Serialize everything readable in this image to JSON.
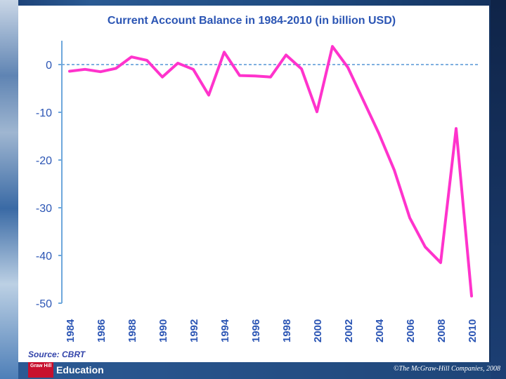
{
  "chart_data": {
    "type": "line",
    "title": "Current Account Balance in 1984-2010 (in billion USD)",
    "xlabel": "",
    "ylabel": "",
    "ylim": [
      -50,
      5
    ],
    "yticks": [
      0,
      -10,
      -20,
      -30,
      -40,
      -50
    ],
    "xticks": [
      1984,
      1986,
      1988,
      1990,
      1992,
      1994,
      1996,
      1998,
      2000,
      2002,
      2004,
      2006,
      2008,
      2010
    ],
    "series": [
      {
        "name": "Current Account Balance",
        "color": "#ff33cc",
        "x": [
          1984,
          1985,
          1986,
          1987,
          1988,
          1989,
          1990,
          1991,
          1992,
          1993,
          1994,
          1995,
          1996,
          1997,
          1998,
          1999,
          2000,
          2001,
          2002,
          2003,
          2004,
          2005,
          2006,
          2007,
          2008,
          2009,
          2010
        ],
        "values": [
          -1.4,
          -1.0,
          -1.5,
          -0.8,
          1.6,
          0.9,
          -2.6,
          0.3,
          -1.0,
          -6.4,
          2.6,
          -2.3,
          -2.4,
          -2.6,
          2.0,
          -0.9,
          -9.9,
          3.8,
          -0.6,
          -7.5,
          -14.4,
          -22.1,
          -32.1,
          -38.2,
          -41.5,
          -13.4,
          -48.5
        ]
      }
    ]
  },
  "source_text": "Source: CBRT",
  "logo": {
    "mark": "Graw Hill",
    "text": "Education"
  },
  "copyright": "©The McGraw-Hill Companies, 2008"
}
